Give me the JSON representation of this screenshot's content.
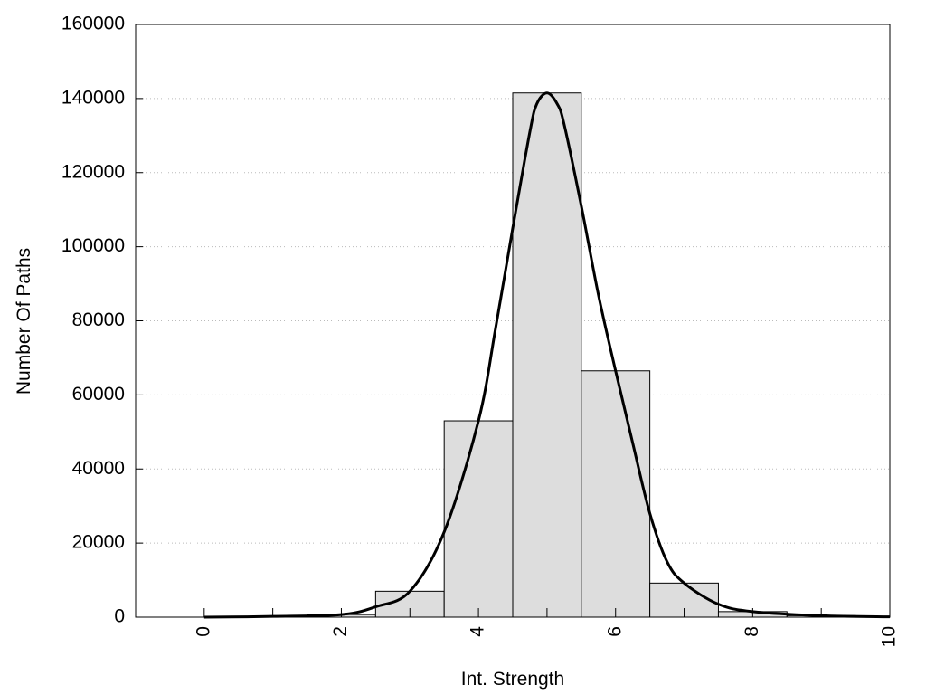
{
  "chart_data": {
    "type": "bar",
    "xlabel": "Int. Strength",
    "ylabel": "Number Of Paths",
    "xlim": [
      -1,
      10
    ],
    "ylim": [
      0,
      160000
    ],
    "x_ticks": [
      0,
      2,
      4,
      6,
      8,
      10
    ],
    "x_tick_labels": [
      "0",
      "2",
      "4",
      "6",
      "8",
      "10"
    ],
    "y_ticks": [
      0,
      20000,
      40000,
      60000,
      80000,
      100000,
      120000,
      140000,
      160000
    ],
    "y_tick_labels": [
      "0",
      "20000",
      "40000",
      "60000",
      "80000",
      "100000",
      "120000",
      "140000",
      "160000"
    ],
    "grid": "horizontal dotted",
    "bar_color": "#dddddd",
    "bar_edge_color": "#000000",
    "line_color": "#000000",
    "bars": {
      "centers": [
        0,
        1,
        2,
        3,
        4,
        5,
        6,
        7,
        8,
        9,
        10
      ],
      "width": 1,
      "values": [
        0,
        200,
        700,
        7000,
        53000,
        141500,
        66500,
        9200,
        1500,
        400,
        100
      ]
    },
    "curve": {
      "x": [
        0,
        1,
        2,
        2.5,
        3,
        3.5,
        4,
        4.25,
        4.5,
        4.75,
        4.85,
        5,
        5.15,
        5.25,
        5.5,
        5.75,
        6,
        6.25,
        6.5,
        6.75,
        7,
        7.5,
        8,
        9,
        10
      ],
      "y": [
        0,
        200,
        700,
        2800,
        7000,
        23000,
        53000,
        78000,
        105000,
        131000,
        138500,
        141500,
        138500,
        133000,
        111000,
        87000,
        66500,
        47000,
        28000,
        15000,
        9200,
        3500,
        1500,
        400,
        100
      ]
    }
  }
}
